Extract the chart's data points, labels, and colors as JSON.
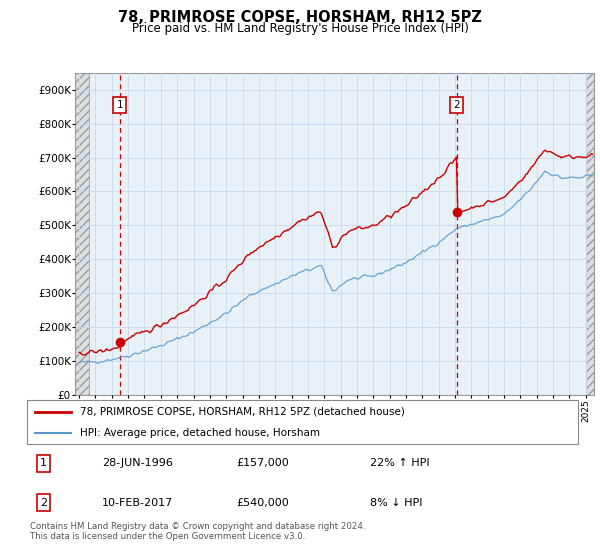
{
  "title": "78, PRIMROSE COPSE, HORSHAM, RH12 5PZ",
  "subtitle": "Price paid vs. HM Land Registry's House Price Index (HPI)",
  "legend_line1": "78, PRIMROSE COPSE, HORSHAM, RH12 5PZ (detached house)",
  "legend_line2": "HPI: Average price, detached house, Horsham",
  "transaction1_date": "28-JUN-1996",
  "transaction1_price": "£157,000",
  "transaction1_hpi": "22% ↑ HPI",
  "transaction2_date": "10-FEB-2017",
  "transaction2_price": "£540,000",
  "transaction2_hpi": "8% ↓ HPI",
  "footer": "Contains HM Land Registry data © Crown copyright and database right 2024.\nThis data is licensed under the Open Government Licence v3.0.",
  "price_color": "#cc0000",
  "hpi_color": "#5599cc",
  "vline_color": "#cc0000",
  "plot_bg_color": "#e8f0f8",
  "grid_color": "#c8d8e8",
  "ylim": [
    0,
    950000
  ],
  "yticks": [
    0,
    100000,
    200000,
    300000,
    400000,
    500000,
    600000,
    700000,
    800000,
    900000
  ],
  "ytick_labels": [
    "£0",
    "£100K",
    "£200K",
    "£300K",
    "£400K",
    "£500K",
    "£600K",
    "£700K",
    "£800K",
    "£900K"
  ],
  "transaction1_x": 1996.49,
  "transaction1_y": 157000,
  "transaction2_x": 2017.11,
  "transaction2_y": 540000,
  "xmin": 1993.75,
  "xmax": 2025.5,
  "hatch_left_end": 1994.58,
  "hatch_right_start": 2025.0
}
